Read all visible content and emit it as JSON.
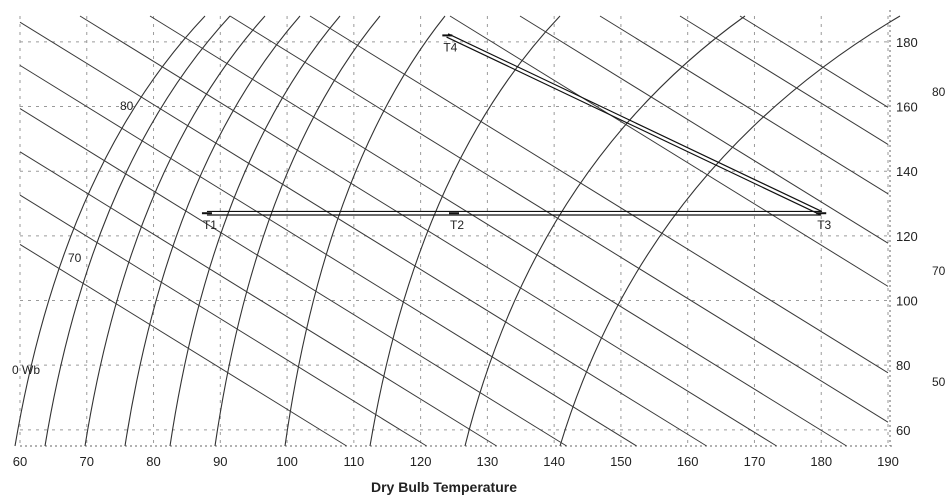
{
  "chart_data": {
    "type": "line",
    "title": "",
    "xlabel": "Dry Bulb Temperature",
    "ylabel": "",
    "xlim": [
      60,
      190
    ],
    "ylim": [
      55,
      188
    ],
    "grid": true,
    "x_ticks": [
      60,
      70,
      80,
      90,
      100,
      110,
      120,
      130,
      140,
      150,
      160,
      170,
      180,
      190
    ],
    "x_tick_labels": [
      "60",
      "70",
      "80",
      "90",
      "100",
      "110",
      "120",
      "130",
      "140",
      "150",
      "160",
      "170",
      "180",
      "190"
    ],
    "y_ticks": [
      60,
      80,
      100,
      120,
      140,
      160,
      180
    ],
    "y_tick_labels": [
      "60",
      "80",
      "100",
      "120",
      "140",
      "160",
      "180"
    ],
    "wet_bulb_labels_left": [
      {
        "text": "80",
        "wb": 80
      },
      {
        "text": "70",
        "wb": 70
      },
      {
        "text": "0 Wb",
        "wb": 60
      }
    ],
    "wet_bulb_labels_right": [
      {
        "text": "80",
        "wb": 80
      },
      {
        "text": "70",
        "wb": 70
      },
      {
        "text": "50",
        "wb": 50
      }
    ],
    "state_points": [
      {
        "label": "T1",
        "x": 88,
        "y": 127
      },
      {
        "label": "T2",
        "x": 125,
        "y": 127
      },
      {
        "label": "T3",
        "x": 180,
        "y": 127
      },
      {
        "label": "T4",
        "x": 124,
        "y": 182
      }
    ],
    "process_path": [
      "T1",
      "T2",
      "T3",
      "T4"
    ]
  }
}
